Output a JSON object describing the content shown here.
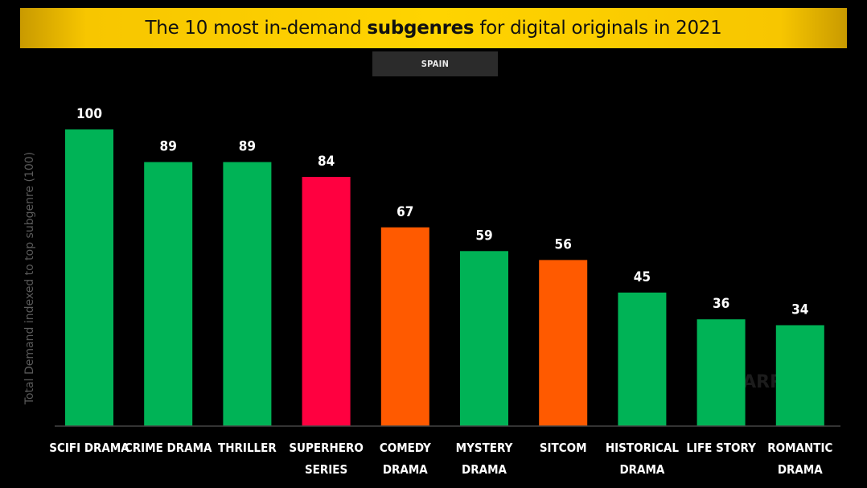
{
  "title": {
    "prefix": "The 10 most in-demand",
    "bold": "subgenres",
    "suffix": "for digital originals in 2021"
  },
  "subtitle": "SPAIN",
  "watermark": "PARROT",
  "colors": {
    "green": "#00b356",
    "red": "#ff0040",
    "orange": "#ff5a00",
    "banner": "#ffd400",
    "axis": "#444444"
  },
  "chart_data": {
    "type": "bar",
    "title": "The 10 most in-demand subgenres for digital originals in 2021",
    "subtitle": "SPAIN",
    "ylabel": "Total Demand indexed to top subgenre (100)",
    "xlabel": "",
    "ylim": [
      0,
      100
    ],
    "grid": false,
    "legend": "none",
    "categories": [
      [
        "SCIFI DRAMA"
      ],
      [
        "CRIME DRAMA"
      ],
      [
        "THRILLER"
      ],
      [
        "SUPERHERO",
        "SERIES"
      ],
      [
        "COMEDY",
        "DRAMA"
      ],
      [
        "MYSTERY",
        "DRAMA"
      ],
      [
        "SITCOM"
      ],
      [
        "HISTORICAL",
        "DRAMA"
      ],
      [
        "LIFE STORY"
      ],
      [
        "ROMANTIC",
        "DRAMA"
      ]
    ],
    "values": [
      100,
      89,
      89,
      84,
      67,
      59,
      56,
      45,
      36,
      34
    ],
    "bar_colors": [
      "#00b356",
      "#00b356",
      "#00b356",
      "#ff0040",
      "#ff5a00",
      "#00b356",
      "#ff5a00",
      "#00b356",
      "#00b356",
      "#00b356"
    ]
  }
}
